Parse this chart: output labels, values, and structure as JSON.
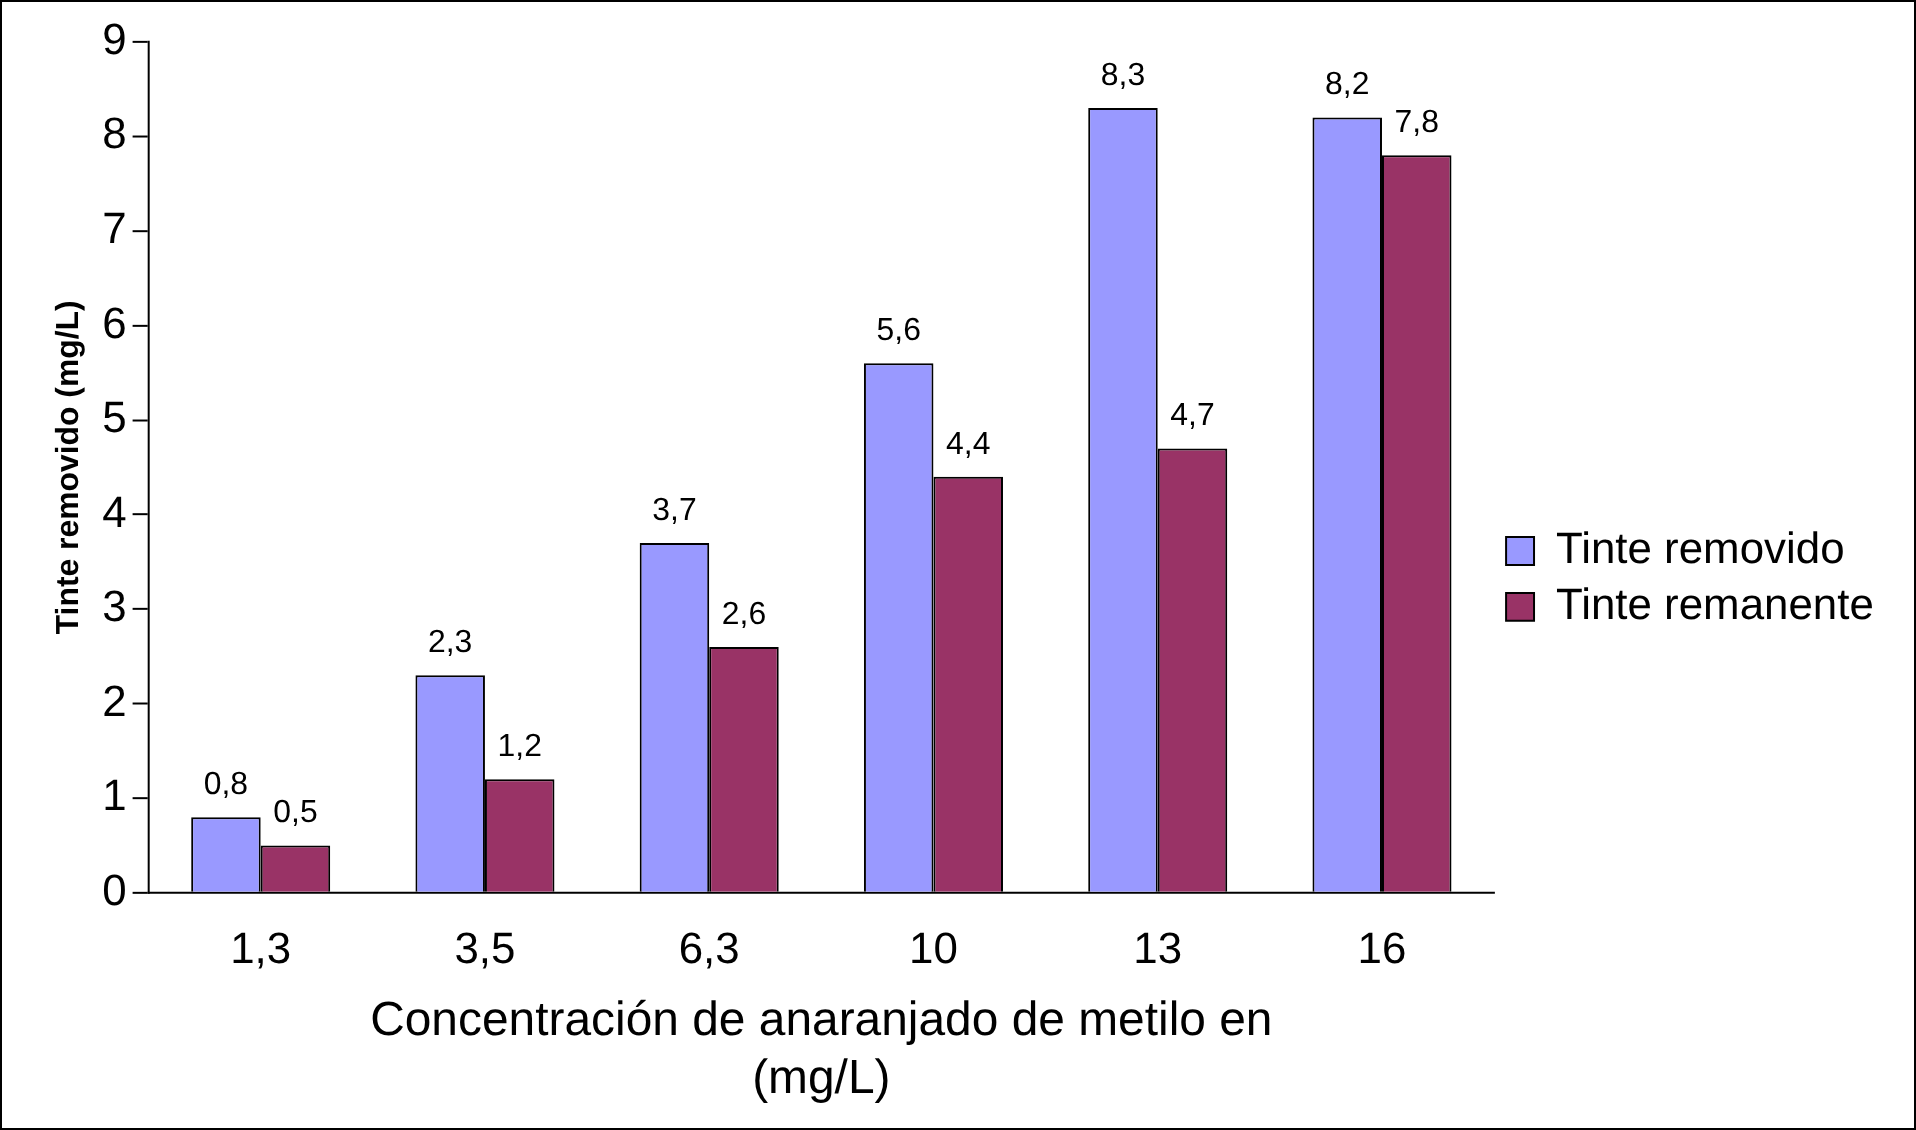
{
  "chart_data": {
    "type": "bar",
    "xlabel": "Concentración de anaranjado de metilo en (mg/L)",
    "ylabel": "Tinte removido (mg/L)",
    "categories": [
      "1,3",
      "3,5",
      "6,3",
      "10",
      "13",
      "16"
    ],
    "series": [
      {
        "name": "Tinte removido",
        "color": "#9999ff",
        "values": [
          0.8,
          2.3,
          3.7,
          5.6,
          8.3,
          8.2
        ],
        "value_labels": [
          "0,8",
          "2,3",
          "3,7",
          "5,6",
          "8,3",
          "8,2"
        ]
      },
      {
        "name": "Tinte remanente",
        "color": "#993366",
        "values": [
          0.5,
          1.2,
          2.6,
          4.4,
          4.7,
          7.8
        ],
        "value_labels": [
          "0,5",
          "1,2",
          "2,6",
          "4,4",
          "4,7",
          "7,8"
        ]
      }
    ],
    "ylim": [
      0,
      9
    ],
    "yticks": [
      0,
      1,
      2,
      3,
      4,
      5,
      6,
      7,
      8,
      9
    ],
    "grid": false,
    "legend": "right"
  }
}
